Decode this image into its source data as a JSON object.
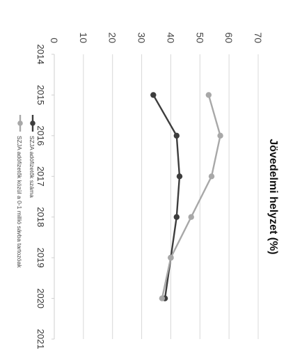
{
  "chart_data": {
    "type": "line",
    "title": "Jövedelmi helyzet (%)",
    "xlabel": "",
    "ylabel": "",
    "x": [
      "2014",
      "2015",
      "2016",
      "2017",
      "2018",
      "2019",
      "2020",
      "2021"
    ],
    "ylim": [
      0,
      70
    ],
    "yticks": [
      "0",
      "10",
      "20",
      "30",
      "40",
      "50",
      "60",
      "70"
    ],
    "grid": true,
    "legend": "bottom",
    "orientation": "rotated-90-clockwise",
    "series": [
      {
        "name": "SZJA adófizetők száma",
        "color": "#3d3d3d",
        "marker": "circle",
        "values": [
          null,
          34,
          42,
          43,
          42,
          40,
          38,
          null
        ]
      },
      {
        "name": "SZJA adófizetők közül a 0-1 millió sávba tartozóak",
        "color": "#a8a8a8",
        "marker": "circle",
        "values": [
          null,
          53,
          57,
          54,
          47,
          40,
          37,
          null
        ]
      }
    ]
  }
}
